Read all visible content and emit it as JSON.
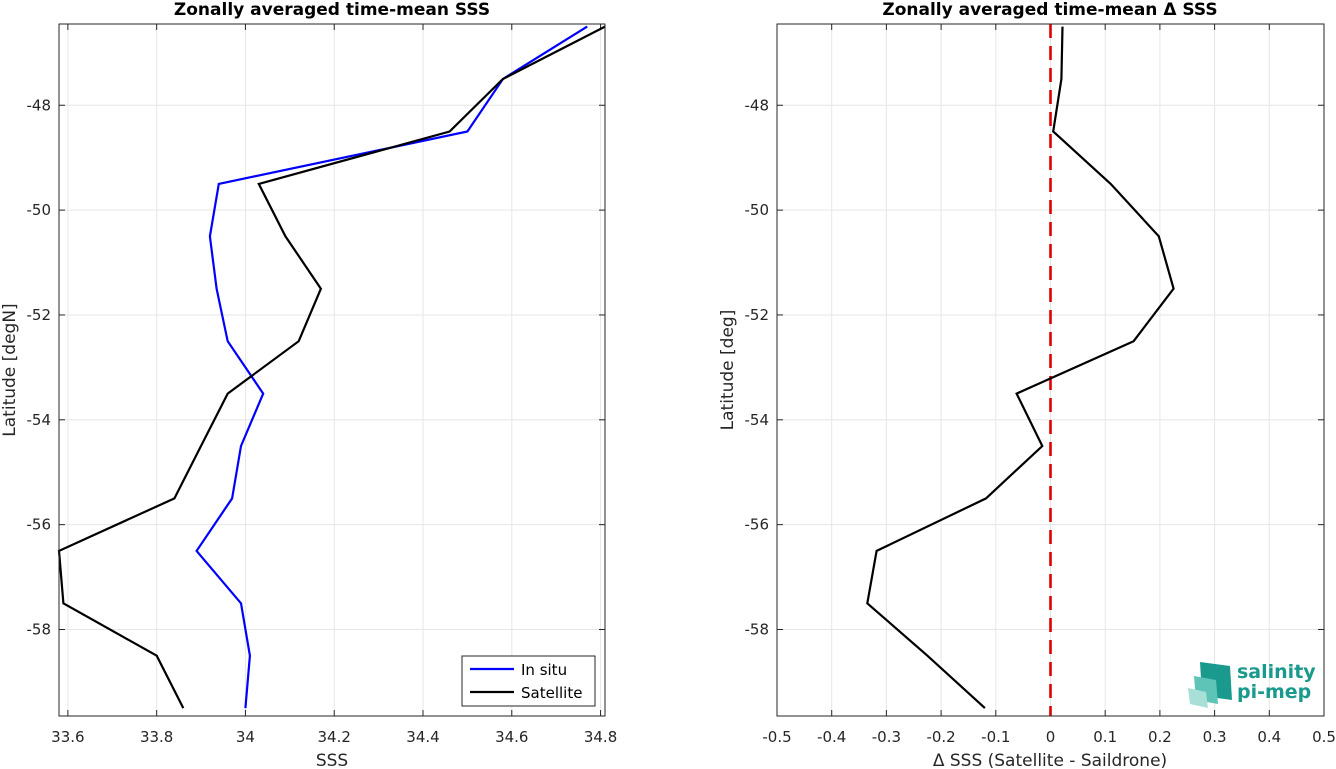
{
  "chart_data": [
    {
      "type": "line",
      "title": "Zonally averaged time-mean SSS",
      "xlabel": "SSS",
      "ylabel": "Latitude [degN]",
      "xlim": [
        33.58,
        34.81
      ],
      "ylim": [
        -59.65,
        -46.45
      ],
      "xticks": [
        33.6,
        33.8,
        34,
        34.2,
        34.4,
        34.6,
        34.8
      ],
      "xtick_labels": [
        "33.6",
        "33.8",
        "34",
        "34.2",
        "34.4",
        "34.6",
        "34.8"
      ],
      "yticks": [
        -58,
        -56,
        -54,
        -52,
        -50,
        -48
      ],
      "ytick_labels": [
        "-58",
        "-56",
        "-54",
        "-52",
        "-50",
        "-48"
      ],
      "grid": true,
      "legend_position": "bottom-right",
      "series": [
        {
          "name": "In situ",
          "color": "#0000ff",
          "x": [
            34.77,
            34.58,
            34.5,
            33.94,
            33.92,
            33.935,
            33.96,
            34.04,
            33.99,
            33.97,
            33.89,
            33.99,
            34.01,
            34.0
          ],
          "y": [
            -46.5,
            -47.5,
            -48.5,
            -49.5,
            -50.5,
            -51.5,
            -52.5,
            -53.5,
            -54.5,
            -55.5,
            -56.5,
            -57.5,
            -58.5,
            -59.5
          ]
        },
        {
          "name": "Satellite",
          "color": "#000000",
          "x": [
            34.81,
            34.58,
            34.46,
            34.03,
            34.09,
            34.17,
            34.12,
            33.96,
            33.9,
            33.84,
            33.58,
            33.59,
            33.8,
            33.86
          ],
          "y": [
            -46.5,
            -47.5,
            -48.5,
            -49.5,
            -50.5,
            -51.5,
            -52.5,
            -53.5,
            -54.5,
            -55.5,
            -56.5,
            -57.5,
            -58.5,
            -59.5
          ]
        }
      ]
    },
    {
      "type": "line",
      "title": "Zonally averaged time-mean Δ SSS",
      "xlabel": "Δ SSS (Satellite - Saildrone)",
      "ylabel": "Latitude [deg]",
      "xlim": [
        -0.5,
        0.5
      ],
      "ylim": [
        -59.65,
        -46.45
      ],
      "xticks": [
        -0.5,
        -0.4,
        -0.3,
        -0.2,
        -0.1,
        0,
        0.1,
        0.2,
        0.3,
        0.4,
        0.5
      ],
      "xtick_labels": [
        "-0.5",
        "-0.4",
        "-0.3",
        "-0.2",
        "-0.1",
        "0",
        "0.1",
        "0.2",
        "0.3",
        "0.4",
        "0.5"
      ],
      "yticks": [
        -58,
        -56,
        -54,
        -52,
        -50,
        -48
      ],
      "ytick_labels": [
        "-58",
        "-56",
        "-54",
        "-52",
        "-50",
        "-48"
      ],
      "grid": true,
      "reference_line": {
        "x": 0,
        "color": "#e00000",
        "style": "dashed"
      },
      "series": [
        {
          "color": "#000000",
          "x": [
            0.022,
            0.02,
            0.005,
            0.11,
            0.198,
            0.225,
            0.152,
            -0.062,
            -0.015,
            -0.118,
            -0.318,
            -0.335,
            -0.225,
            -0.12
          ],
          "y": [
            -46.5,
            -47.5,
            -48.5,
            -49.5,
            -50.5,
            -51.5,
            -52.5,
            -53.5,
            -54.5,
            -55.5,
            -56.5,
            -57.5,
            -58.5,
            -59.5
          ]
        }
      ]
    }
  ],
  "logo": {
    "line1": "salinity",
    "line2": "pi-mep",
    "colors": [
      "#1a9a8c",
      "#5fc4b8",
      "#a8e0d8"
    ]
  }
}
